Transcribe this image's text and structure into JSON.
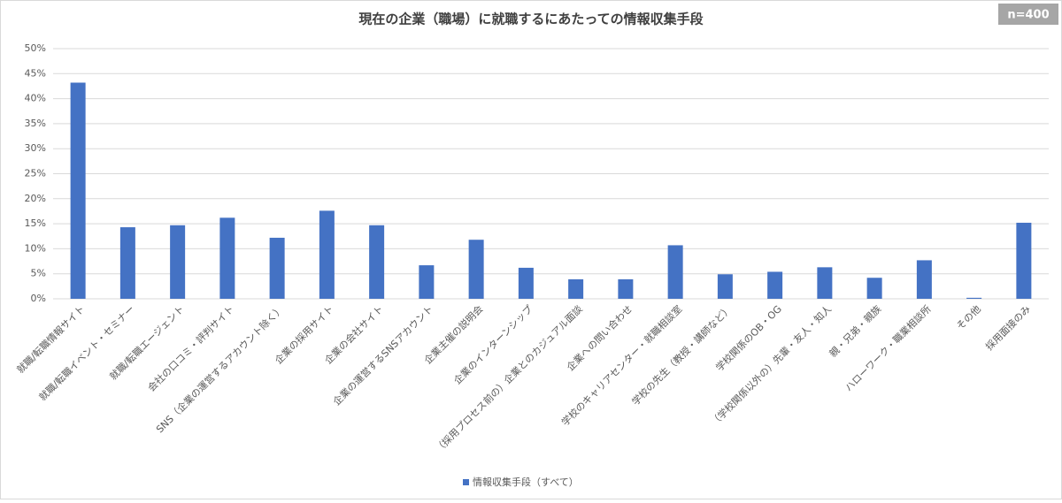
{
  "chart_data": {
    "type": "bar",
    "title": "現在の企業（職場）に就職するにあたっての情報収集手段",
    "annotation": "n=400",
    "categories": [
      "就職/転職情報サイト",
      "就職/転職イベント・セミナー",
      "就職/転職エージェント",
      "会社の口コミ・評判サイト",
      "SNS（企業の運営するアカウント除く）",
      "企業の採用サイト",
      "企業の会社サイト",
      "企業の運営するSNSアカウント",
      "企業主催の説明会",
      "企業のインターンシップ",
      "（採用プロセス前の）企業とのカジュアル面談",
      "企業への問い合わせ",
      "学校のキャリアセンター・就職相談室",
      "学校の先生（教授・講師など）",
      "学校関係のOB・OG",
      "（学校関係以外の）先輩・友人・知人",
      "親・兄弟・親族",
      "ハローワーク・職業相談所",
      "その他",
      "採用面接のみ"
    ],
    "series": [
      {
        "name": "情報収集手段（すべて）",
        "color": "#4472c4",
        "values": [
          43.2,
          14.3,
          14.7,
          16.2,
          12.2,
          17.6,
          14.7,
          6.7,
          11.8,
          6.2,
          3.9,
          3.9,
          10.7,
          4.9,
          5.4,
          6.3,
          4.2,
          7.7,
          0.2,
          15.2
        ]
      }
    ],
    "ylim": [
      0,
      50
    ],
    "yticks": [
      {
        "value": 0,
        "label": "0%"
      },
      {
        "value": 5,
        "label": "5%"
      },
      {
        "value": 10,
        "label": "10%"
      },
      {
        "value": 15,
        "label": "15%"
      },
      {
        "value": 20,
        "label": "20%"
      },
      {
        "value": 25,
        "label": "25%"
      },
      {
        "value": 30,
        "label": "30%"
      },
      {
        "value": 35,
        "label": "35%"
      },
      {
        "value": 40,
        "label": "40%"
      },
      {
        "value": 45,
        "label": "45%"
      },
      {
        "value": 50,
        "label": "50%"
      }
    ],
    "grid": true,
    "legend": "bottom"
  }
}
